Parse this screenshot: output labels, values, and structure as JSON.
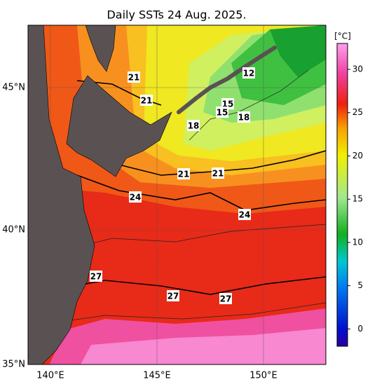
{
  "title": "Daily SSTs 24 Aug. 2025.",
  "lat_labels": [
    "45°N",
    "40°N",
    "35°N"
  ],
  "lon_labels": [
    "140°E",
    "145°E",
    "150°E"
  ],
  "colorbar": {
    "unit": "[°C]",
    "range": [
      -2,
      33
    ],
    "ticks": [
      0,
      5,
      10,
      15,
      20,
      25,
      30
    ]
  },
  "contour_labels": [
    21,
    21,
    12,
    15,
    15,
    18,
    18,
    21,
    21,
    24,
    24,
    27,
    27,
    27
  ]
}
